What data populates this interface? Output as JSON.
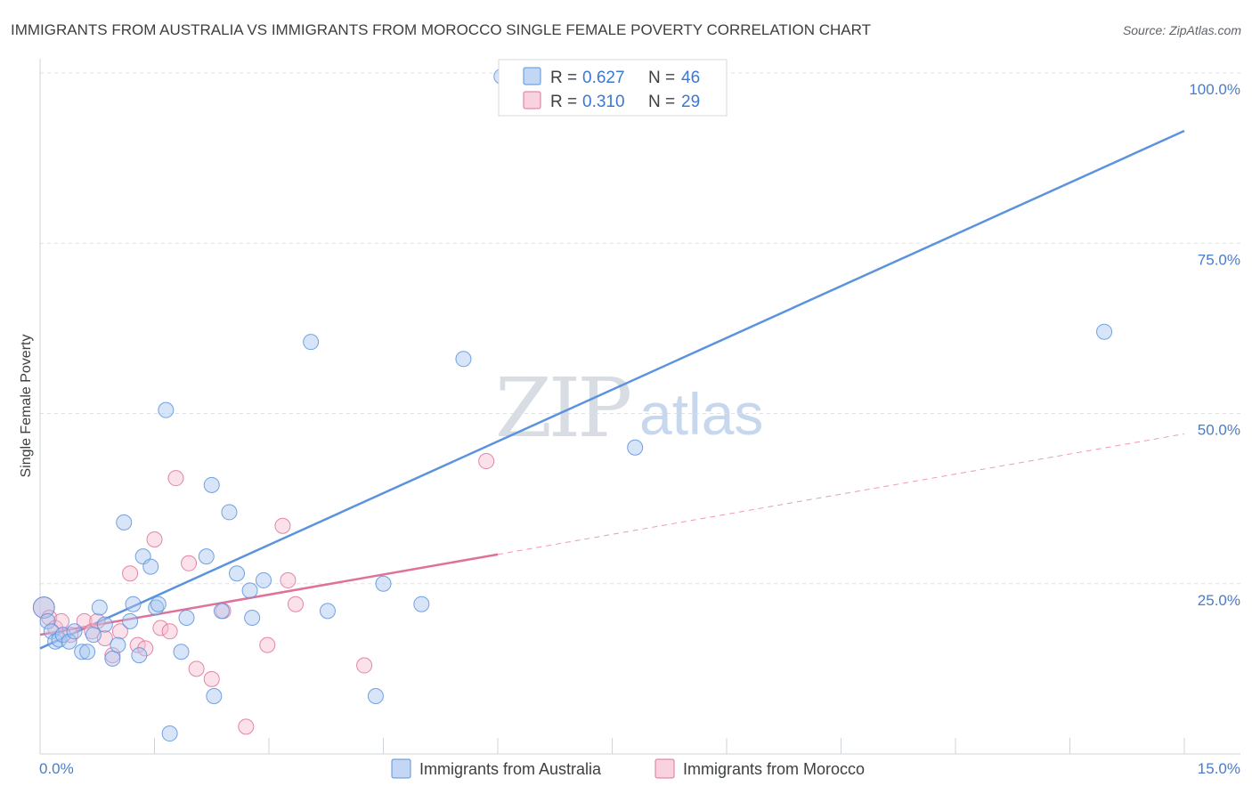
{
  "chart_data": {
    "type": "scatter",
    "title": "IMMIGRANTS FROM AUSTRALIA VS IMMIGRANTS FROM MOROCCO SINGLE FEMALE POVERTY CORRELATION CHART",
    "source": "Source: ZipAtlas.com",
    "xlabel": "",
    "ylabel": "Single Female Poverty",
    "xlim": [
      0,
      15
    ],
    "ylim": [
      0,
      100
    ],
    "x_tick_labels": {
      "min": "0.0%",
      "max": "15.0%"
    },
    "y_ticks": [
      {
        "value": 25,
        "label": "25.0%"
      },
      {
        "value": 50,
        "label": "50.0%"
      },
      {
        "value": 75,
        "label": "75.0%"
      },
      {
        "value": 100,
        "label": "100.0%"
      }
    ],
    "watermark": {
      "zip": "ZIP",
      "atlas": "atlas"
    },
    "legend": {
      "r_label": "R =",
      "n_label": "N =",
      "rows": [
        {
          "series": "Immigrants from Australia",
          "r": "0.627",
          "n": "46"
        },
        {
          "series": "Immigrants from Morocco",
          "r": "0.310",
          "n": "29"
        }
      ]
    },
    "series": [
      {
        "name": "Immigrants from Australia",
        "color": "#5b93dd",
        "fill": "#a9c6ef",
        "trend": {
          "x0": 0,
          "y0": 15.5,
          "x1": 15,
          "y1": 91.5,
          "x_solid_end": 15
        },
        "points": [
          [
            0.05,
            21.5,
            1.4
          ],
          [
            0.1,
            19.5,
            1
          ],
          [
            0.15,
            18,
            1
          ],
          [
            0.2,
            16.5,
            1
          ],
          [
            0.25,
            16.8,
            1
          ],
          [
            0.3,
            17.5,
            1
          ],
          [
            0.38,
            16.5,
            1
          ],
          [
            0.45,
            18,
            1
          ],
          [
            0.55,
            15,
            1
          ],
          [
            0.62,
            15,
            1
          ],
          [
            0.7,
            17.5,
            1
          ],
          [
            0.78,
            21.5,
            1
          ],
          [
            0.85,
            19,
            1
          ],
          [
            0.95,
            14,
            1
          ],
          [
            1.02,
            16,
            1
          ],
          [
            1.1,
            34,
            1
          ],
          [
            1.18,
            19.5,
            1
          ],
          [
            1.22,
            22,
            1
          ],
          [
            1.3,
            14.5,
            1
          ],
          [
            1.35,
            29,
            1
          ],
          [
            1.45,
            27.5,
            1
          ],
          [
            1.52,
            21.5,
            1
          ],
          [
            1.55,
            22,
            1
          ],
          [
            1.65,
            50.5,
            1
          ],
          [
            1.7,
            3,
            1
          ],
          [
            1.85,
            15,
            1
          ],
          [
            1.92,
            20,
            1
          ],
          [
            2.18,
            29,
            1
          ],
          [
            2.25,
            39.5,
            1
          ],
          [
            2.28,
            8.5,
            1
          ],
          [
            2.38,
            21,
            1
          ],
          [
            2.48,
            35.5,
            1
          ],
          [
            2.58,
            26.5,
            1
          ],
          [
            2.75,
            24,
            1
          ],
          [
            2.78,
            20,
            1
          ],
          [
            2.93,
            25.5,
            1
          ],
          [
            3.55,
            60.5,
            1
          ],
          [
            3.77,
            21,
            1
          ],
          [
            4.4,
            8.5,
            1
          ],
          [
            4.5,
            25,
            1
          ],
          [
            5.0,
            22,
            1
          ],
          [
            5.55,
            58,
            1
          ],
          [
            6.05,
            99.5,
            1
          ],
          [
            6.15,
            99.5,
            1
          ],
          [
            7.8,
            45,
            1
          ],
          [
            13.95,
            62,
            1
          ]
        ]
      },
      {
        "name": "Immigrants from Morocco",
        "color": "#e0719a",
        "fill": "#f7bfd1",
        "trend": {
          "x0": 0,
          "y0": 17.5,
          "x1": 15,
          "y1": 47,
          "x_solid_end": 6.0
        },
        "points": [
          [
            0.05,
            21.5,
            1.4
          ],
          [
            0.12,
            20,
            1
          ],
          [
            0.2,
            18.5,
            1
          ],
          [
            0.28,
            19.5,
            1
          ],
          [
            0.4,
            17.5,
            1
          ],
          [
            0.58,
            19.5,
            1
          ],
          [
            0.68,
            18,
            1
          ],
          [
            0.75,
            19.5,
            1
          ],
          [
            0.85,
            17,
            1
          ],
          [
            0.95,
            14.5,
            1
          ],
          [
            1.05,
            18,
            1
          ],
          [
            1.18,
            26.5,
            1
          ],
          [
            1.28,
            16,
            1
          ],
          [
            1.38,
            15.5,
            1
          ],
          [
            1.5,
            31.5,
            1
          ],
          [
            1.58,
            18.5,
            1
          ],
          [
            1.7,
            18,
            1
          ],
          [
            1.78,
            40.5,
            1
          ],
          [
            1.95,
            28,
            1
          ],
          [
            2.05,
            12.5,
            1
          ],
          [
            2.25,
            11,
            1
          ],
          [
            2.4,
            21,
            1
          ],
          [
            2.7,
            4,
            1
          ],
          [
            2.98,
            16,
            1
          ],
          [
            3.18,
            33.5,
            1
          ],
          [
            3.25,
            25.5,
            1
          ],
          [
            3.35,
            22,
            1
          ],
          [
            4.25,
            13,
            1
          ],
          [
            5.85,
            43,
            1
          ]
        ]
      }
    ]
  }
}
